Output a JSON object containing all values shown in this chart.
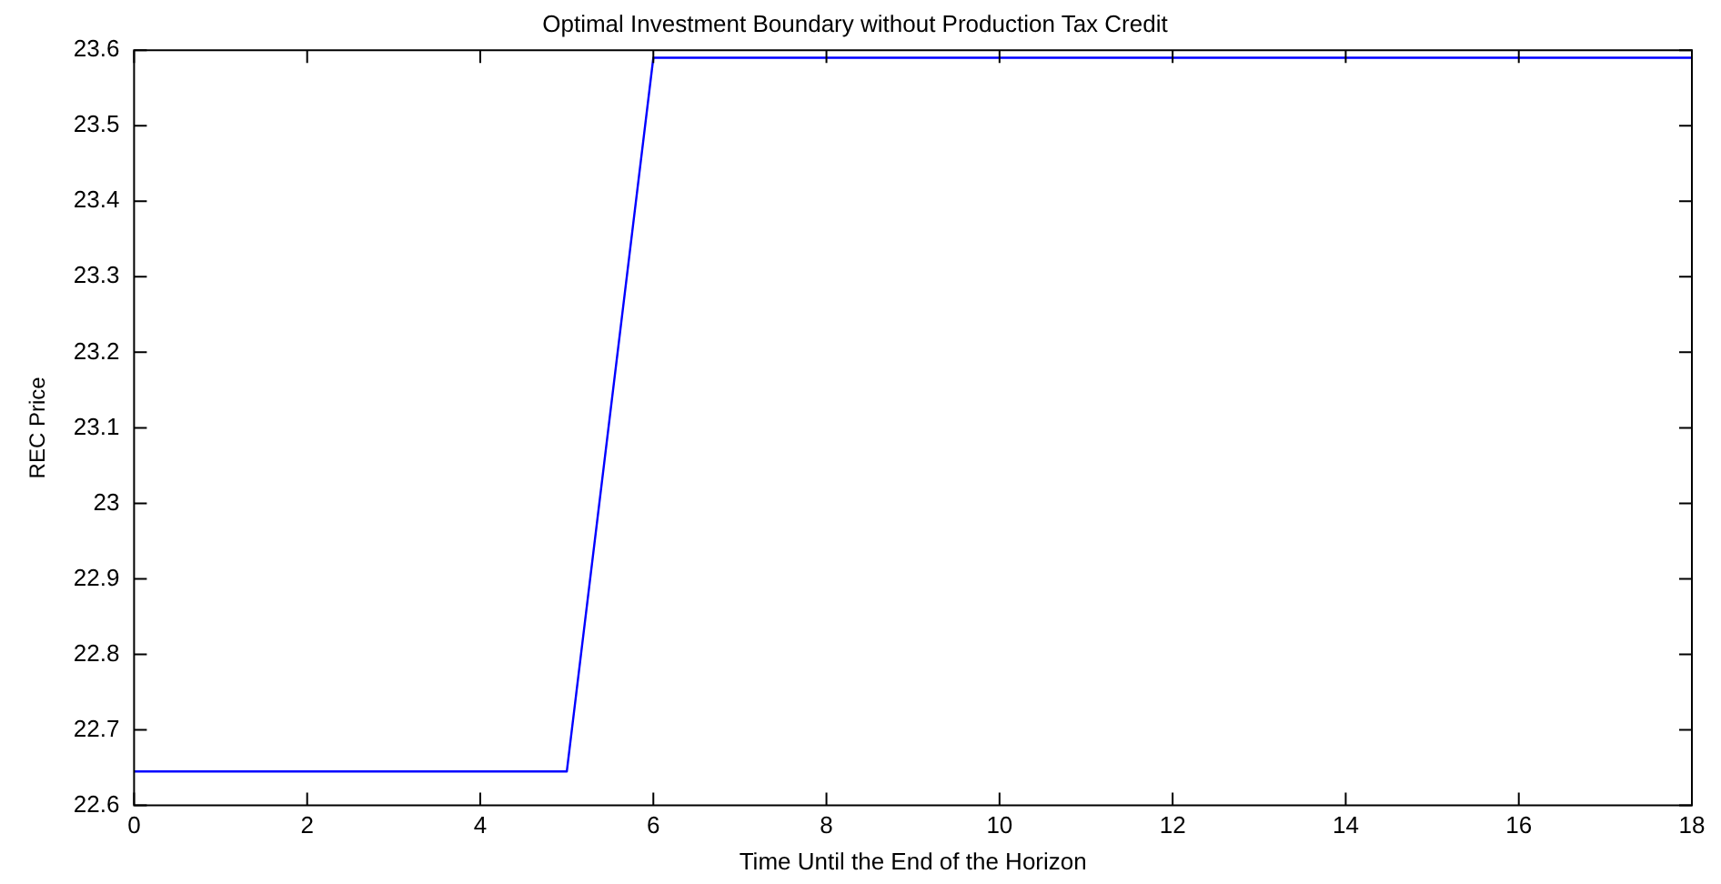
{
  "chart_data": {
    "type": "line",
    "title": "Optimal Investment Boundary without Production Tax Credit",
    "xlabel": "Time Until the End of the Horizon",
    "ylabel": "REC Price",
    "x": [
      0,
      1,
      2,
      3,
      4,
      5,
      6,
      7,
      8,
      9,
      10,
      11,
      12,
      13,
      14,
      15,
      16,
      17,
      18
    ],
    "series": [
      {
        "color": "#0000ff",
        "values": [
          22.645,
          22.645,
          22.645,
          22.645,
          22.645,
          22.645,
          23.59,
          23.59,
          23.59,
          23.59,
          23.59,
          23.59,
          23.59,
          23.59,
          23.59,
          23.59,
          23.59,
          23.59,
          23.59
        ]
      }
    ],
    "xlim": [
      0,
      18
    ],
    "xticks": [
      0,
      2,
      4,
      6,
      8,
      10,
      12,
      14,
      16,
      18
    ],
    "ylim": [
      22.6,
      23.6
    ],
    "yticks": [
      22.6,
      22.7,
      22.8,
      22.9,
      23,
      23.1,
      23.2,
      23.3,
      23.4,
      23.5,
      23.6
    ],
    "grid": false,
    "legend": false,
    "marker": "none",
    "line_style": "solid"
  }
}
